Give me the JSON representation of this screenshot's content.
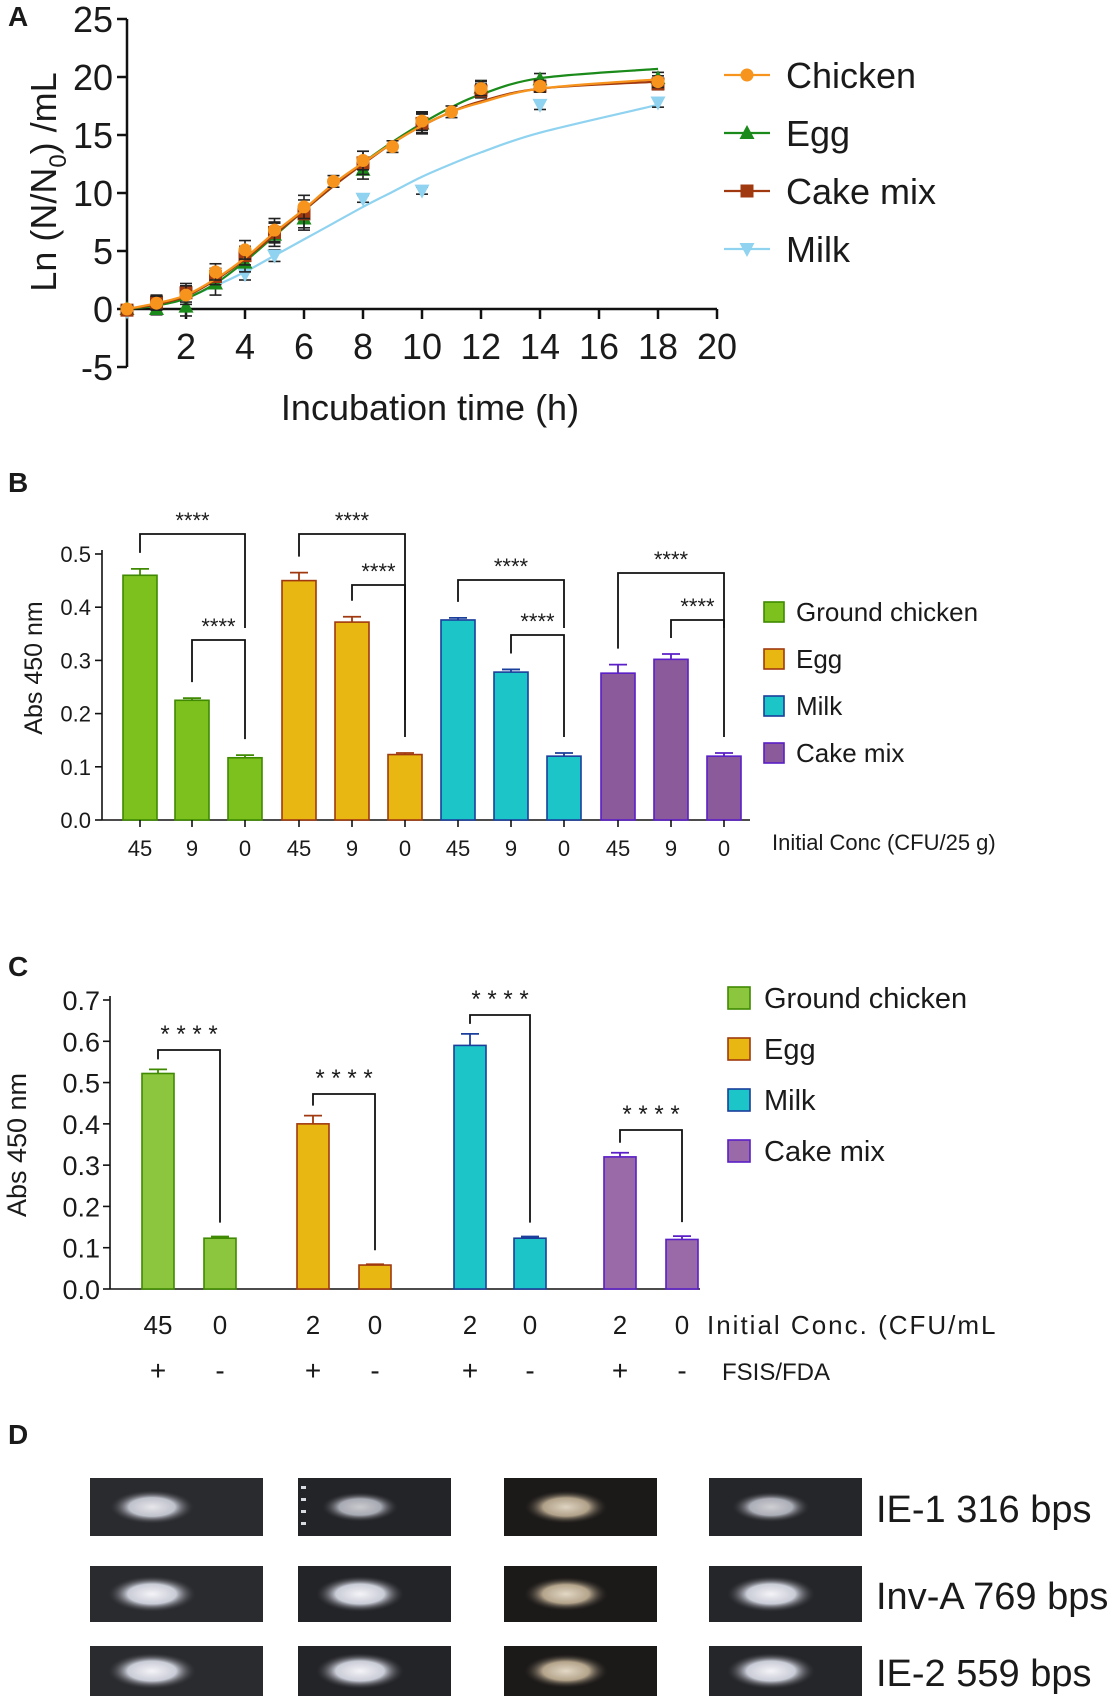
{
  "panels": {
    "a": {
      "letter": "A"
    },
    "b": {
      "letter": "B"
    },
    "c": {
      "letter": "C"
    },
    "d": {
      "letter": "D"
    }
  },
  "colors": {
    "chicken": "#f7941d",
    "egg": "#1a8a1a",
    "cake_mix": "#a0390f",
    "milk": "#8fd3f0",
    "ground_chicken_fill": "#7cc11e",
    "egg_fill": "#e8b712",
    "milk_fill": "#1cc5c7",
    "cake_mix_fill": "#8b5a9a"
  },
  "chart_data": [
    {
      "panel": "A",
      "type": "line",
      "xlabel": "Incubation time (h)",
      "ylabel": "Ln (N/N0) /mL",
      "ylabel_main": "Ln (N/N",
      "ylabel_sub": "0",
      "ylabel_end": ") /mL",
      "xlim": [
        0,
        20
      ],
      "ylim": [
        -5,
        25
      ],
      "xticks": [
        2,
        4,
        6,
        8,
        10,
        12,
        14,
        16,
        18,
        20
      ],
      "yticks": [
        -5,
        0,
        5,
        10,
        15,
        20,
        25
      ],
      "legend_position": "right",
      "series": [
        {
          "name": "Chicken",
          "marker": "circle",
          "color": "#f7941d",
          "x": [
            0,
            1,
            2,
            3,
            4,
            5,
            6,
            7,
            8,
            9,
            10,
            11,
            12,
            14,
            18
          ],
          "y": [
            0,
            0.5,
            1.2,
            3.2,
            5.1,
            6.8,
            8.8,
            11.0,
            12.8,
            14.0,
            16.2,
            17.0,
            19.0,
            19.2,
            19.6
          ],
          "err": [
            0.3,
            0.6,
            0.8,
            0.7,
            0.8,
            1.0,
            1.0,
            0.5,
            0.8,
            0.5,
            0.8,
            0.5,
            0.6,
            0.5,
            0.5
          ],
          "fit": [
            0,
            0.5,
            1.2,
            2.6,
            4.4,
            6.6,
            8.6,
            10.8,
            12.6,
            14.3,
            15.8,
            17.0,
            17.8,
            19.0,
            19.8
          ]
        },
        {
          "name": "Egg",
          "marker": "triangle-up",
          "color": "#1a8a1a",
          "x": [
            0,
            1,
            2,
            3,
            4,
            5,
            6,
            8,
            10,
            12,
            14,
            18
          ],
          "y": [
            0,
            0,
            0.2,
            2.2,
            4.0,
            6.4,
            7.8,
            12.0,
            16.0,
            19.1,
            19.8,
            19.9
          ],
          "err": [
            0.3,
            0.5,
            0.8,
            1.0,
            0.8,
            1.0,
            1.0,
            0.8,
            0.8,
            0.6,
            0.5,
            0.5
          ],
          "fit": [
            0,
            0.3,
            0.9,
            2.2,
            4.1,
            6.3,
            8.5,
            10.6,
            12.6,
            14.4,
            16.0,
            17.4,
            18.5,
            19.9,
            20.7
          ]
        },
        {
          "name": "Cake mix",
          "marker": "square",
          "color": "#a0390f",
          "x": [
            0,
            1,
            2,
            3,
            4,
            5,
            6,
            8,
            10,
            12,
            14,
            18
          ],
          "y": [
            -0.1,
            0.6,
            1.4,
            2.8,
            4.6,
            6.6,
            8.2,
            12.6,
            16.0,
            18.8,
            19.2,
            19.4
          ],
          "err": [
            0.3,
            0.6,
            0.8,
            0.7,
            0.8,
            0.9,
            1.2,
            1.0,
            0.9,
            0.6,
            0.5,
            0.5
          ],
          "fit": [
            0,
            0.4,
            1.1,
            2.5,
            4.3,
            6.4,
            8.5,
            10.6,
            12.5,
            14.3,
            15.8,
            17.0,
            17.9,
            19.0,
            19.6
          ]
        },
        {
          "name": "Milk",
          "marker": "triangle-down",
          "color": "#8fd3f0",
          "x": [
            0,
            4,
            5,
            8,
            10,
            14,
            18
          ],
          "y": [
            -0.2,
            3.0,
            4.6,
            9.5,
            10.2,
            17.6,
            17.8
          ],
          "err": [
            0.2,
            0.5,
            0.5,
            0.3,
            0.3,
            0.4,
            0.4
          ],
          "fit": [
            0,
            0.4,
            1.0,
            2.0,
            3.2,
            4.6,
            6.0,
            7.4,
            8.8,
            10.1,
            11.4,
            12.5,
            13.5,
            15.2,
            17.6
          ]
        }
      ],
      "fit_x": [
        0,
        1,
        2,
        3,
        4,
        5,
        6,
        7,
        8,
        9,
        10,
        11,
        12,
        14,
        18
      ]
    },
    {
      "panel": "B",
      "type": "bar",
      "ylabel": "Abs 450 nm",
      "xlabel": "Initial Conc (CFU/25 g)",
      "ylim": [
        0.0,
        0.5
      ],
      "yticks": [
        "0.0",
        "0.1",
        "0.2",
        "0.3",
        "0.4",
        "0.5"
      ],
      "categories": [
        "45",
        "9",
        "0",
        "45",
        "9",
        "0",
        "45",
        "9",
        "0",
        "45",
        "9",
        "0"
      ],
      "values": [
        0.46,
        0.225,
        0.117,
        0.45,
        0.372,
        0.123,
        0.376,
        0.278,
        0.12,
        0.276,
        0.302,
        0.12
      ],
      "errors": [
        0.012,
        0.004,
        0.005,
        0.015,
        0.01,
        0.003,
        0.004,
        0.005,
        0.006,
        0.016,
        0.01,
        0.006
      ],
      "groups": [
        {
          "name": "Ground chicken",
          "fill": "#7cc11e",
          "stroke": "#3f8a00"
        },
        {
          "name": "Egg",
          "fill": "#e8b712",
          "stroke": "#a0390f"
        },
        {
          "name": "Milk",
          "fill": "#1cc5c7",
          "stroke": "#1a3e9c"
        },
        {
          "name": "Cake mix",
          "fill": "#8b5a9a",
          "stroke": "#5a1fc7"
        }
      ],
      "significance": "****",
      "brackets": [
        {
          "from": 0,
          "to": 2,
          "label": "****"
        },
        {
          "from": 1,
          "to": 2,
          "label": "****"
        },
        {
          "from": 3,
          "to": 5,
          "label": "****"
        },
        {
          "from": 4,
          "to": 5,
          "label": "****"
        },
        {
          "from": 6,
          "to": 8,
          "label": "****"
        },
        {
          "from": 7,
          "to": 8,
          "label": "****"
        },
        {
          "from": 9,
          "to": 11,
          "label": "****"
        },
        {
          "from": 10,
          "to": 11,
          "label": "****"
        }
      ],
      "legend_position": "right"
    },
    {
      "panel": "C",
      "type": "bar",
      "ylabel": "Abs 450 nm",
      "xlabel": "Initial Conc. (CFU/mL",
      "second_row_label": "FSIS/FDA",
      "ylim": [
        0.0,
        0.7
      ],
      "yticks": [
        "0.0",
        "0.1",
        "0.2",
        "0.3",
        "0.4",
        "0.5",
        "0.6",
        "0.7"
      ],
      "categories": [
        "45",
        "0",
        "2",
        "0",
        "2",
        "0",
        "2",
        "0"
      ],
      "signs": [
        "+",
        "-",
        "+",
        "-",
        "+",
        "-",
        "+",
        "-"
      ],
      "values": [
        0.522,
        0.123,
        0.4,
        0.058,
        0.59,
        0.123,
        0.32,
        0.12
      ],
      "errors": [
        0.01,
        0.004,
        0.02,
        0.002,
        0.028,
        0.004,
        0.01,
        0.008
      ],
      "groups": [
        {
          "name": "Ground chicken",
          "fill": "#8cc63f",
          "stroke": "#3f8a00"
        },
        {
          "name": "Egg",
          "fill": "#e8b712",
          "stroke": "#a0390f"
        },
        {
          "name": "Milk",
          "fill": "#1cc5c7",
          "stroke": "#1a3e9c"
        },
        {
          "name": "Cake mix",
          "fill": "#9a6aa8",
          "stroke": "#5a1fc7"
        }
      ],
      "brackets": [
        {
          "from": 0,
          "to": 1,
          "label": "* * * *"
        },
        {
          "from": 2,
          "to": 3,
          "label": "* * * *"
        },
        {
          "from": 4,
          "to": 5,
          "label": "* * * *"
        },
        {
          "from": 6,
          "to": 7,
          "label": "* * * *"
        }
      ],
      "legend_position": "right"
    }
  ],
  "gel": {
    "bands": [
      {
        "label": "IE-1 316 bps"
      },
      {
        "label": "Inv-A 769 bps"
      },
      {
        "label": "IE-2 559 bps"
      }
    ]
  }
}
